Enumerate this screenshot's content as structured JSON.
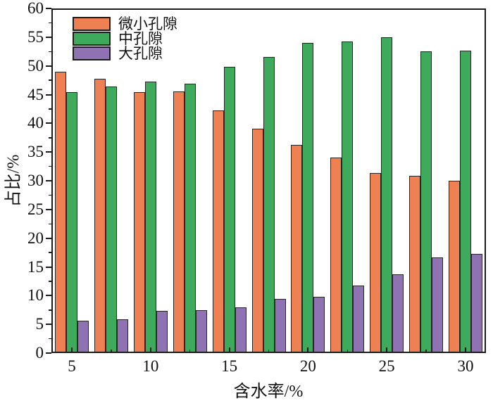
{
  "chart_data": {
    "type": "bar",
    "title": "",
    "xlabel": "含水率/%",
    "ylabel": "占比/%",
    "x": [
      5,
      7.5,
      10,
      12.5,
      15,
      17.5,
      20,
      22.5,
      25,
      27.5,
      30
    ],
    "series": [
      {
        "name": "微小孔隙",
        "color": "#EE8052",
        "values": [
          49.0,
          47.7,
          45.4,
          45.6,
          42.2,
          39.1,
          36.2,
          34.0,
          31.3,
          30.8,
          30.0
        ]
      },
      {
        "name": "中孔隙",
        "color": "#3EAB5C",
        "values": [
          45.4,
          46.4,
          47.3,
          46.9,
          49.8,
          51.5,
          54.0,
          54.2,
          55.0,
          52.5,
          52.7
        ]
      },
      {
        "name": "大孔隙",
        "color": "#8E72B2",
        "values": [
          5.6,
          5.9,
          7.3,
          7.5,
          8.0,
          9.4,
          9.8,
          11.8,
          13.7,
          16.7,
          17.3
        ]
      }
    ],
    "xlim": [
      3.7,
      31.3
    ],
    "ylim": [
      0,
      60
    ],
    "x_major_ticks": [
      5,
      10,
      15,
      20,
      25,
      30
    ],
    "x_minor_ticks": [
      7.5,
      12.5,
      17.5,
      22.5,
      27.5
    ],
    "y_major_ticks": [
      0,
      5,
      10,
      15,
      20,
      25,
      30,
      35,
      40,
      45,
      50,
      55,
      60
    ],
    "y_minor_ticks": [
      2.5,
      7.5,
      12.5,
      17.5,
      22.5,
      27.5,
      32.5,
      37.5,
      42.5,
      47.5,
      52.5,
      57.5
    ],
    "grid": false,
    "legend_position": "upper-left-inside",
    "bar_edge_color": "#262626",
    "axis_color": "#1c1c1c"
  }
}
